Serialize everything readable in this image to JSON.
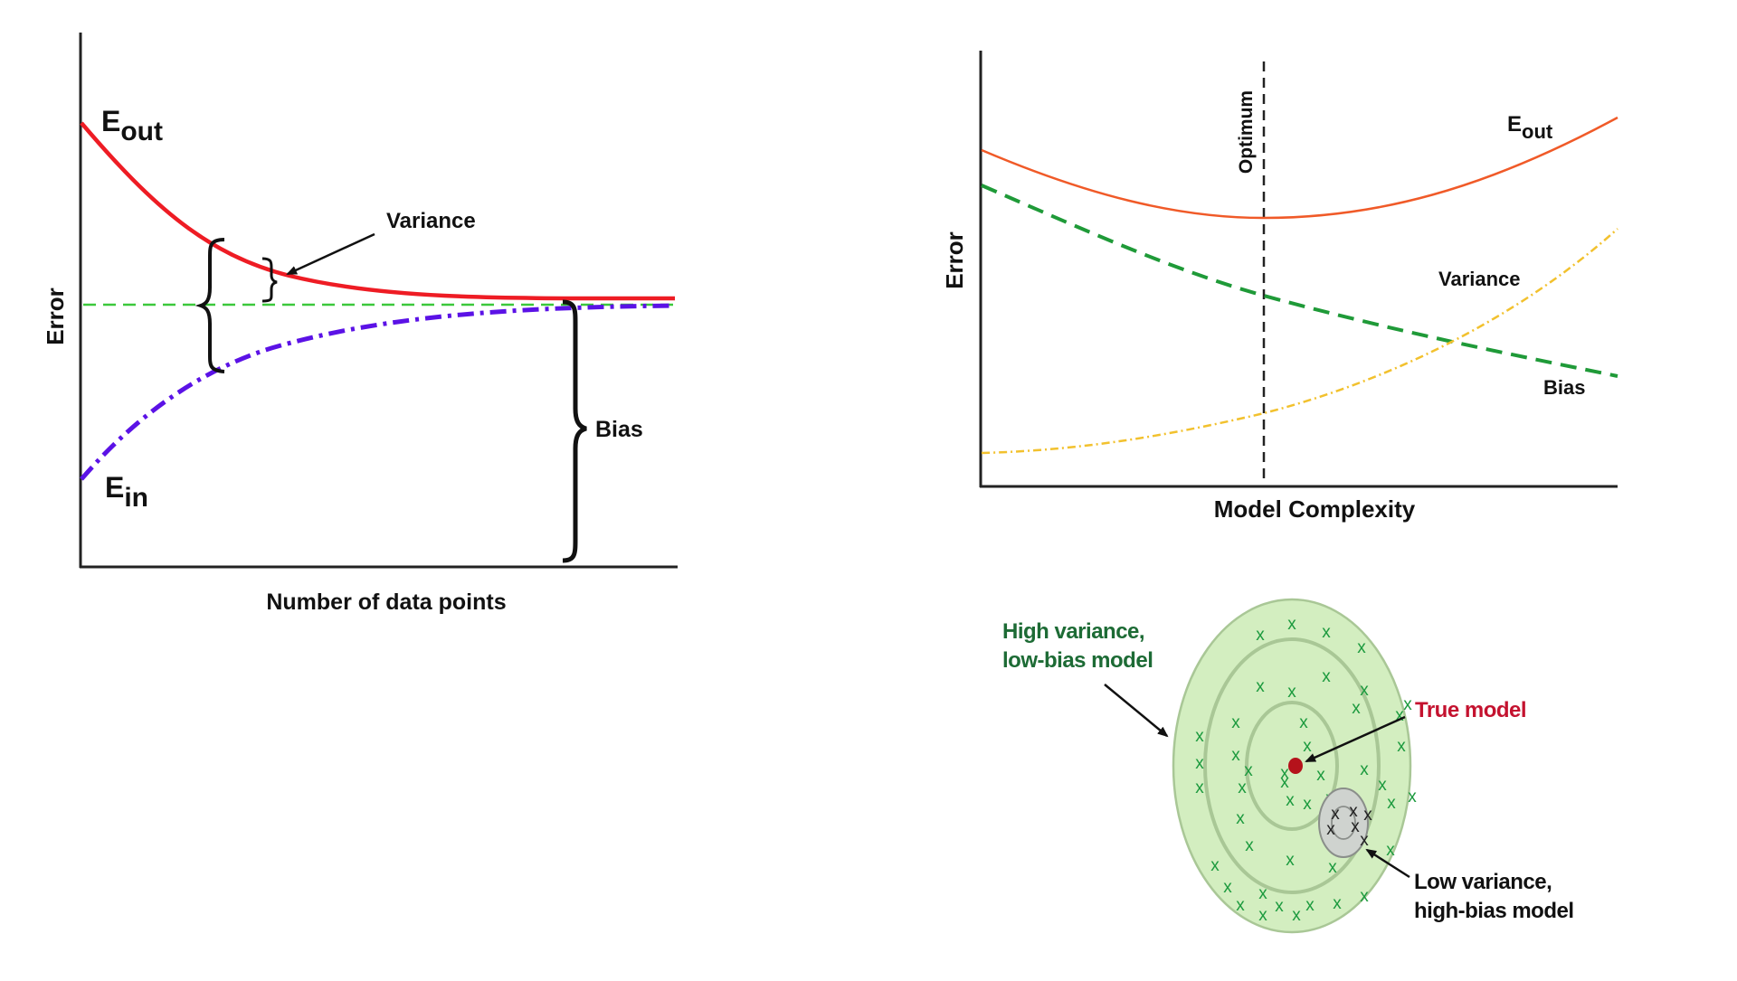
{
  "panels": {
    "learning_curve": {
      "y_axis_label": "Error",
      "x_axis_label": "Number of data points",
      "eout_label": {
        "main": "E",
        "sub": "out"
      },
      "ein_label": {
        "main": "E",
        "sub": "in"
      },
      "variance_label": "Variance",
      "bias_label": "Bias",
      "colors": {
        "eout": "#ee1c24",
        "ein": "#5b12e6",
        "asymptote": "#3cc83c",
        "axis": "#222222"
      }
    },
    "complexity_tradeoff": {
      "y_axis_label": "Error",
      "x_axis_label": "Model Complexity",
      "optimum_label": "Optimum",
      "eout_label": {
        "main": "E",
        "sub": "out"
      },
      "variance_label": "Variance",
      "bias_label": "Bias",
      "colors": {
        "eout": "#f05a28",
        "bias": "#1f9a38",
        "variance": "#f2c12e",
        "axis": "#222222"
      }
    },
    "target_diagram": {
      "high_variance_label": [
        "High variance,",
        "low-bias model"
      ],
      "true_model_label": "True model",
      "low_variance_label": [
        "Low variance,",
        "high-bias model"
      ],
      "marker_glyph": "x",
      "colors": {
        "high_variance_text": "#1d6b35",
        "true_model_text": "#c4122f",
        "target_fill": "#d3eec0",
        "ring": "#a9c796",
        "marker": "#1c9a3e",
        "cluster_fill": "#cfd3cf",
        "cluster_marker": "#222222",
        "true_point": "#b5121b"
      }
    }
  }
}
